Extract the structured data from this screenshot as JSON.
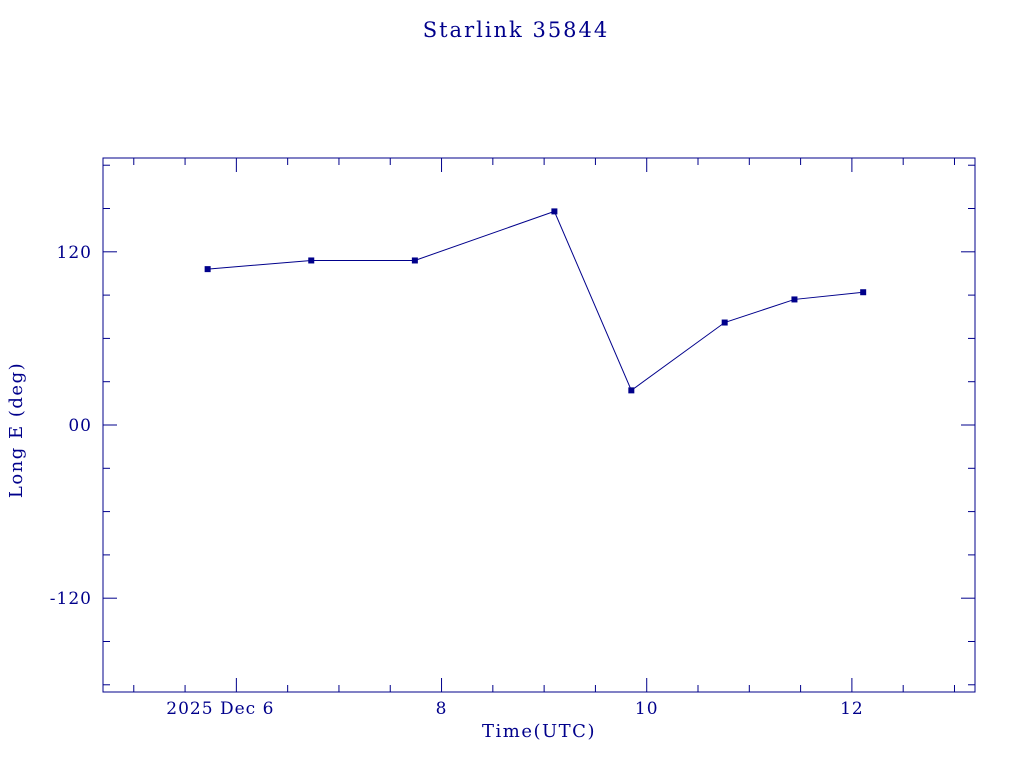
{
  "page": {
    "background": "#ffffff"
  },
  "chart_data": {
    "type": "line",
    "title": "Starlink 35844",
    "xlabel": "Time(UTC)",
    "ylabel": "Long E (deg)",
    "line_color": "#00008B",
    "marker": "square",
    "marker_size": 5,
    "grid": false,
    "legend": null,
    "x_unit": "day of month, 2025 Dec (UTC)",
    "x": [
      5.72,
      6.73,
      7.74,
      9.1,
      9.85,
      10.76,
      11.44,
      12.11
    ],
    "y": [
      108,
      114,
      114,
      148,
      24,
      71,
      87,
      92
    ],
    "xlim": [
      4.7,
      13.2
    ],
    "ylim": [
      -185,
      185
    ],
    "xticks": [
      6,
      8,
      10,
      12
    ],
    "xtick_labels": [
      "2025 Dec 6",
      "8",
      "10",
      "12"
    ],
    "x_minor_step": 0.5,
    "yticks": [
      -120,
      0,
      120
    ],
    "ytick_labels": [
      "-120",
      "00",
      "120"
    ],
    "y_minor_step": 30
  }
}
